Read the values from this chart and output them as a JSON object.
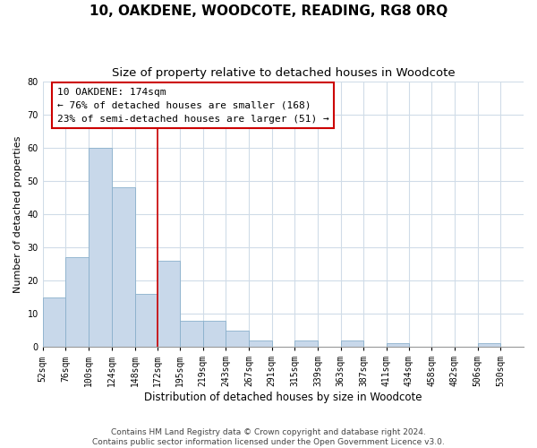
{
  "title": "10, OAKDENE, WOODCOTE, READING, RG8 0RQ",
  "subtitle": "Size of property relative to detached houses in Woodcote",
  "xlabel": "Distribution of detached houses by size in Woodcote",
  "ylabel": "Number of detached properties",
  "bin_labels": [
    "52sqm",
    "76sqm",
    "100sqm",
    "124sqm",
    "148sqm",
    "172sqm",
    "195sqm",
    "219sqm",
    "243sqm",
    "267sqm",
    "291sqm",
    "315sqm",
    "339sqm",
    "363sqm",
    "387sqm",
    "411sqm",
    "434sqm",
    "458sqm",
    "482sqm",
    "506sqm",
    "530sqm"
  ],
  "bin_edges": [
    52,
    76,
    100,
    124,
    148,
    172,
    195,
    219,
    243,
    267,
    291,
    315,
    339,
    363,
    387,
    411,
    434,
    458,
    482,
    506,
    530
  ],
  "bar_heights": [
    15,
    27,
    60,
    48,
    16,
    26,
    8,
    8,
    5,
    2,
    0,
    2,
    0,
    2,
    0,
    1,
    0,
    0,
    0,
    1,
    0
  ],
  "bar_color": "#c8d8ea",
  "bar_edge_color": "#8ab0cc",
  "vline_x": 172,
  "vline_color": "#cc0000",
  "annotation_line1": "10 OAKDENE: 174sqm",
  "annotation_line2": "← 76% of detached houses are smaller (168)",
  "annotation_line3": "23% of semi-detached houses are larger (51) →",
  "ylim": [
    0,
    80
  ],
  "yticks": [
    0,
    10,
    20,
    30,
    40,
    50,
    60,
    70,
    80
  ],
  "footnote": "Contains HM Land Registry data © Crown copyright and database right 2024.\nContains public sector information licensed under the Open Government Licence v3.0.",
  "background_color": "#ffffff",
  "grid_color": "#d0dce8",
  "title_fontsize": 11,
  "subtitle_fontsize": 9.5,
  "xlabel_fontsize": 8.5,
  "ylabel_fontsize": 8,
  "tick_fontsize": 7,
  "annotation_fontsize": 8,
  "footnote_fontsize": 6.5
}
